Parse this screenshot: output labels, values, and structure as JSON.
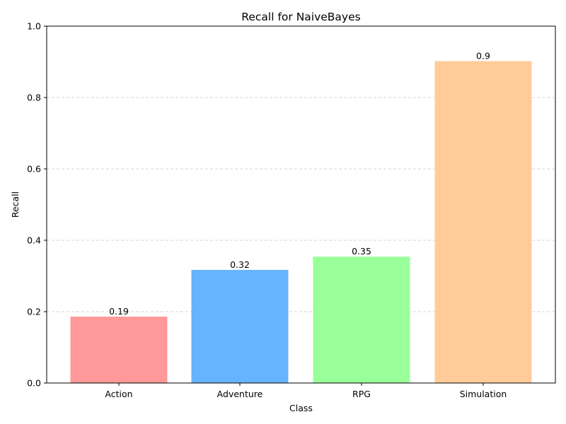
{
  "chart_data": {
    "type": "bar",
    "title": "Recall for NaiveBayes",
    "xlabel": "Class",
    "ylabel": "Recall",
    "categories": [
      "Action",
      "Adventure",
      "RPG",
      "Simulation"
    ],
    "values": [
      0.186,
      0.317,
      0.354,
      0.902
    ],
    "data_labels": [
      "0.19",
      "0.32",
      "0.35",
      "0.9"
    ],
    "colors": [
      "#ff9999",
      "#66b3ff",
      "#99ff99",
      "#ffcc99"
    ],
    "ylim": [
      0,
      1.0
    ],
    "yticks": [
      0.0,
      0.2,
      0.4,
      0.6,
      0.8,
      1.0
    ],
    "ytick_labels": [
      "0.0",
      "0.2",
      "0.4",
      "0.6",
      "0.8",
      "1.0"
    ],
    "grid": "y-dashed"
  }
}
